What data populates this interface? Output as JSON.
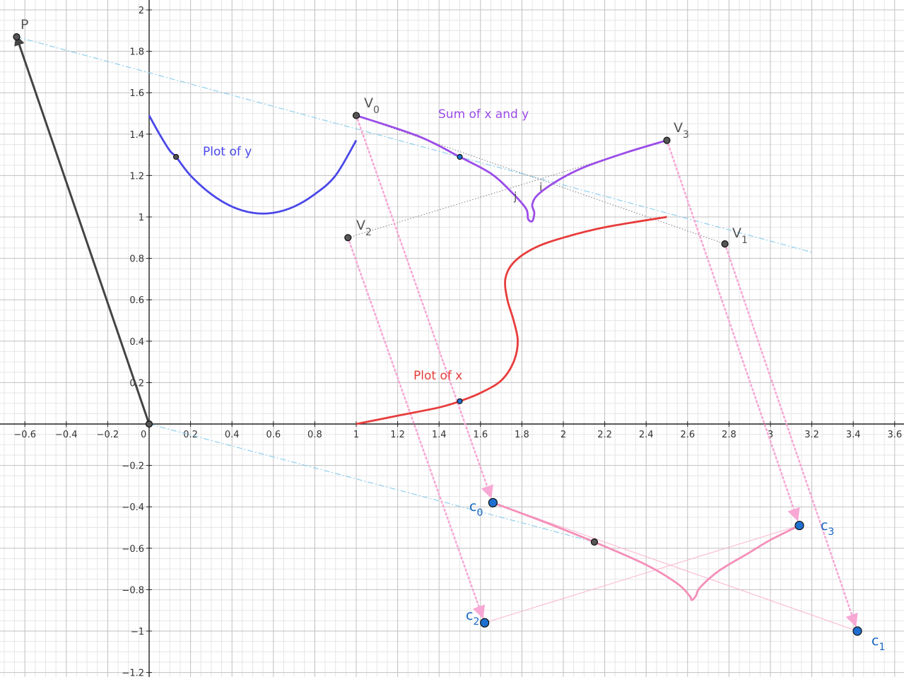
{
  "canvas": {
    "x_range": [
      -0.72,
      3.6
    ],
    "y_range": [
      -1.2,
      2.05
    ],
    "minor_grid_step": 0.05,
    "major_grid_step": 0.2,
    "x_tick_labels": [
      "-0.6",
      "-0.4",
      "-0.2",
      "0",
      "0.2",
      "0.4",
      "0.6",
      "0.8",
      "1",
      "1.2",
      "1.4",
      "1.6",
      "1.8",
      "2",
      "2.2",
      "2.4",
      "2.6",
      "2.8",
      "3",
      "3.2",
      "3.4",
      "3.6"
    ],
    "y_tick_labels": [
      "-1.2",
      "-1",
      "-0.8",
      "-0.6",
      "-0.4",
      "-0.2",
      "0.2",
      "0.4",
      "0.6",
      "0.8",
      "1",
      "1.2",
      "1.4",
      "1.6",
      "1.8",
      "2"
    ]
  },
  "labels": {
    "plot_y": "Plot of y",
    "plot_x": "Plot of x",
    "sum": "Sum of x and y",
    "P": "P",
    "V": "V",
    "c": "c",
    "sub0": "0",
    "sub1": "1",
    "sub2": "2",
    "sub3": "3",
    "i": "i",
    "j": "j"
  },
  "points": {
    "P": [
      -0.64,
      1.87
    ],
    "O": [
      0,
      0
    ],
    "V0": [
      1.0,
      1.49
    ],
    "V1": [
      2.78,
      0.87
    ],
    "V2": [
      0.96,
      0.9
    ],
    "V3": [
      2.5,
      1.37
    ],
    "c0": [
      1.66,
      -0.38
    ],
    "c1": [
      3.42,
      -1.0
    ],
    "c2": [
      1.62,
      -0.96
    ],
    "c3": [
      3.14,
      -0.49
    ],
    "y_marker": [
      0.13,
      1.29
    ],
    "sum_marker": [
      1.5,
      1.29
    ],
    "x_marker": [
      1.5,
      0.11
    ],
    "c_marker": [
      2.15,
      -0.57
    ]
  },
  "curves": {
    "plot_y": {
      "color": "#4a48e8",
      "pts": [
        [
          0,
          1.49
        ],
        [
          0.05,
          1.4
        ],
        [
          0.1,
          1.32
        ],
        [
          0.13,
          1.29
        ],
        [
          0.2,
          1.2
        ],
        [
          0.3,
          1.11
        ],
        [
          0.4,
          1.05
        ],
        [
          0.5,
          1.02
        ],
        [
          0.6,
          1.02
        ],
        [
          0.7,
          1.05
        ],
        [
          0.8,
          1.11
        ],
        [
          0.9,
          1.2
        ],
        [
          1.0,
          1.37
        ]
      ]
    },
    "plot_x": {
      "color": "#e83c3c",
      "pts": [
        [
          1.0,
          0.0
        ],
        [
          1.2,
          0.04
        ],
        [
          1.4,
          0.08
        ],
        [
          1.5,
          0.11
        ],
        [
          1.6,
          0.15
        ],
        [
          1.7,
          0.21
        ],
        [
          1.76,
          0.3
        ],
        [
          1.78,
          0.4
        ],
        [
          1.76,
          0.5
        ],
        [
          1.73,
          0.6
        ],
        [
          1.72,
          0.7
        ],
        [
          1.76,
          0.78
        ],
        [
          1.86,
          0.85
        ],
        [
          2.0,
          0.9
        ],
        [
          2.2,
          0.95
        ],
        [
          2.5,
          1.0
        ]
      ]
    },
    "sum": {
      "color": "#9b4ce8",
      "pts": [
        [
          1.0,
          1.49
        ],
        [
          1.3,
          1.39
        ],
        [
          1.5,
          1.29
        ],
        [
          1.65,
          1.21
        ],
        [
          1.75,
          1.12
        ],
        [
          1.82,
          1.04
        ],
        [
          1.83,
          0.99
        ],
        [
          1.85,
          0.98
        ],
        [
          1.86,
          1.02
        ],
        [
          1.85,
          1.06
        ],
        [
          1.88,
          1.11
        ],
        [
          1.98,
          1.18
        ],
        [
          2.1,
          1.24
        ],
        [
          2.3,
          1.31
        ],
        [
          2.5,
          1.37
        ]
      ]
    },
    "c_curve": {
      "color": "#f48fb9",
      "pts": [
        [
          1.66,
          -0.38
        ],
        [
          1.9,
          -0.47
        ],
        [
          2.15,
          -0.57
        ],
        [
          2.4,
          -0.68
        ],
        [
          2.55,
          -0.77
        ],
        [
          2.61,
          -0.83
        ],
        [
          2.62,
          -0.85
        ],
        [
          2.64,
          -0.83
        ],
        [
          2.66,
          -0.79
        ],
        [
          2.75,
          -0.71
        ],
        [
          2.9,
          -0.62
        ],
        [
          3.0,
          -0.56
        ],
        [
          3.14,
          -0.49
        ]
      ]
    }
  },
  "colors": {
    "grid_minor": "#e6e6e6",
    "grid_major": "#c0c0c0",
    "axis": "#222222",
    "vector": "#444444",
    "dash_dot": "#8fcfee",
    "pink_dots": "#f7a8d4",
    "pink_thin": "#f9b4cf",
    "gray_dots": "#888888",
    "blue_point": "#1e6fcf",
    "gray_point": "#555555"
  }
}
